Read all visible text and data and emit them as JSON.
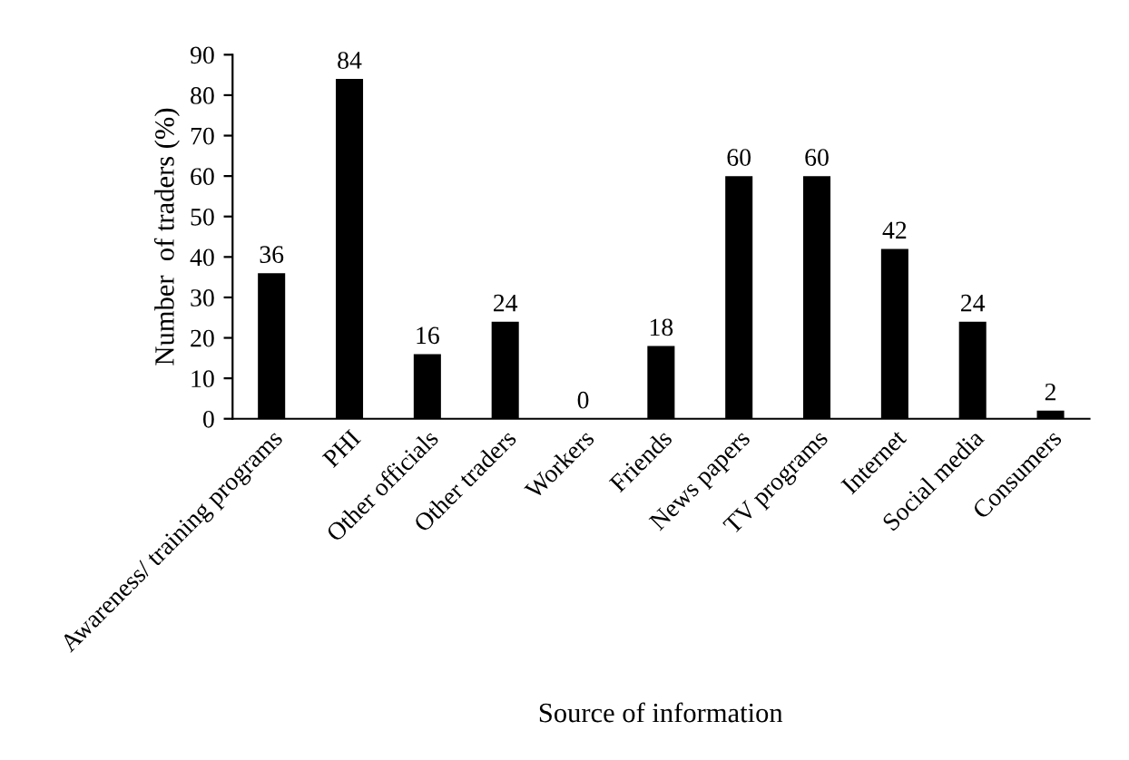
{
  "chart_data": {
    "type": "bar",
    "categories": [
      "Awareness/ training programs",
      "PHI",
      "Other officials",
      "Other traders",
      "Workers",
      "Friends",
      "News papers",
      "TV programs",
      "Internet",
      "Social media",
      "Consumers"
    ],
    "values": [
      36,
      84,
      16,
      24,
      0,
      18,
      60,
      60,
      42,
      24,
      2
    ],
    "color": "#000000",
    "xlabel": "Source of information",
    "ylabel": "Number  of traders (%)",
    "ylim": [
      0,
      90
    ],
    "yticks": [
      0,
      10,
      20,
      30,
      40,
      50,
      60,
      70,
      80,
      90
    ],
    "data_labels": true,
    "grid": false
  }
}
